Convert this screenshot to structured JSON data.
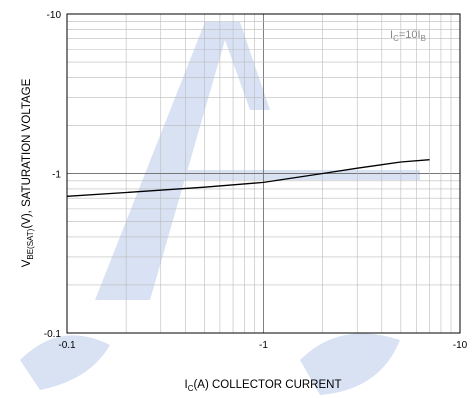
{
  "chart_data": {
    "type": "line",
    "x_axis": {
      "scale": "log",
      "range": [
        -0.1,
        -10
      ],
      "tick_labels": [
        "-0.1",
        "-1",
        "-10"
      ],
      "title_main": "I",
      "title_sub": "C",
      "title_rest": "(A) COLLECTOR CURRENT"
    },
    "y_axis": {
      "scale": "log",
      "range": [
        -0.1,
        -10
      ],
      "tick_labels": [
        "-0.1",
        "-1",
        "-10"
      ],
      "title_main": "V",
      "title_sub": "BE(SAT)",
      "title_rest": "(V), SATURATION VOLTAGE"
    },
    "grid": true,
    "annotation": {
      "main": "I",
      "sub1": "C",
      "middle": "=10I",
      "sub2": "B"
    },
    "series": [
      {
        "color": "#000000",
        "x": [
          -0.1,
          -0.2,
          -0.5,
          -1,
          -2,
          -3,
          -5,
          -7
        ],
        "y": [
          -0.72,
          -0.76,
          -0.82,
          -0.88,
          -1.0,
          -1.08,
          -1.18,
          -1.22
        ]
      }
    ],
    "watermark_color": "#a9bfe6"
  }
}
